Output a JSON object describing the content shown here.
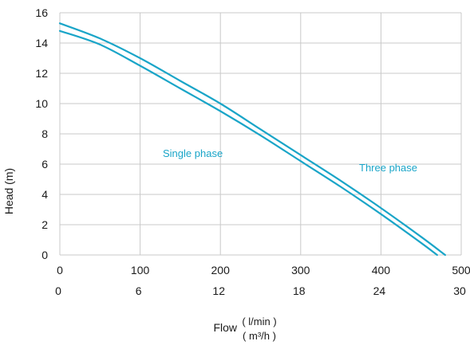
{
  "chart_data": {
    "type": "line",
    "title": "",
    "ylabel": "Head (m)",
    "xlabel": "Flow",
    "xlabel_units": [
      "( l/min )",
      "( m³/h )"
    ],
    "xlim": [
      0,
      500
    ],
    "ylim": [
      0,
      16
    ],
    "grid": true,
    "x_ticks": [
      "0",
      "100",
      "200",
      "300",
      "400",
      "500"
    ],
    "x_ticks_secondary": [
      "0",
      "6",
      "12",
      "18",
      "24",
      "30"
    ],
    "y_ticks": [
      "0",
      "2",
      "4",
      "6",
      "8",
      "10",
      "12",
      "14",
      "16"
    ],
    "line_color": "#1aa5c8",
    "series": [
      {
        "name": "Three phase",
        "x": [
          0,
          50,
          100,
          150,
          200,
          250,
          300,
          350,
          400,
          450,
          480
        ],
        "y": [
          15.3,
          14.3,
          13.0,
          11.5,
          10.0,
          8.3,
          6.6,
          4.9,
          3.1,
          1.2,
          0.0
        ]
      },
      {
        "name": "Single phase",
        "x": [
          0,
          50,
          100,
          150,
          200,
          250,
          300,
          350,
          400,
          450,
          470
        ],
        "y": [
          14.8,
          13.9,
          12.5,
          11.0,
          9.5,
          7.9,
          6.2,
          4.5,
          2.7,
          0.8,
          0.0
        ]
      }
    ],
    "annotations": [
      "Single phase",
      "Three phase"
    ]
  }
}
